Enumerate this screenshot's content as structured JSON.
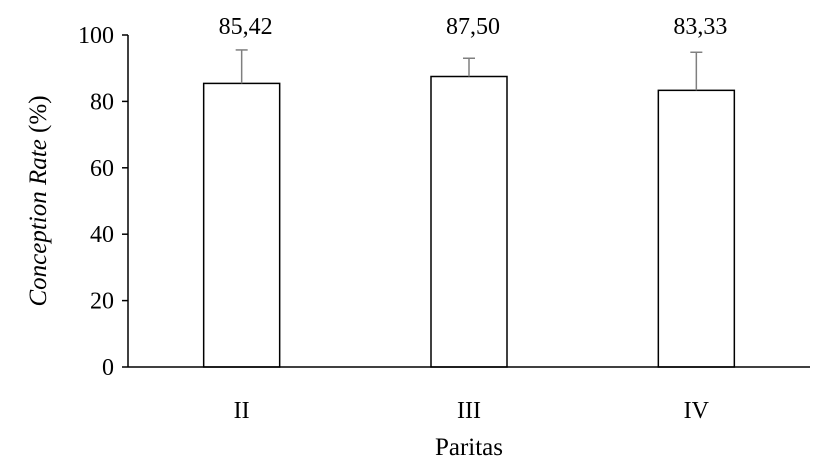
{
  "chart_data": {
    "type": "bar",
    "categories": [
      "II",
      "III",
      "IV"
    ],
    "values": [
      85.42,
      87.5,
      83.33
    ],
    "value_labels": [
      "85,42",
      "87,50",
      "83,33"
    ],
    "error_upper": [
      95.5,
      93.0,
      94.8
    ],
    "xlabel": "Paritas",
    "ylabel": {
      "italic": "Conception Rate",
      "unit": " (%)"
    },
    "ylim": [
      0,
      100
    ],
    "yticks": [
      0,
      20,
      40,
      60,
      80,
      100
    ],
    "grid": false,
    "bar_fill": "#ffffff",
    "bar_stroke": "#000000",
    "error_color": "#7f7f7f"
  }
}
